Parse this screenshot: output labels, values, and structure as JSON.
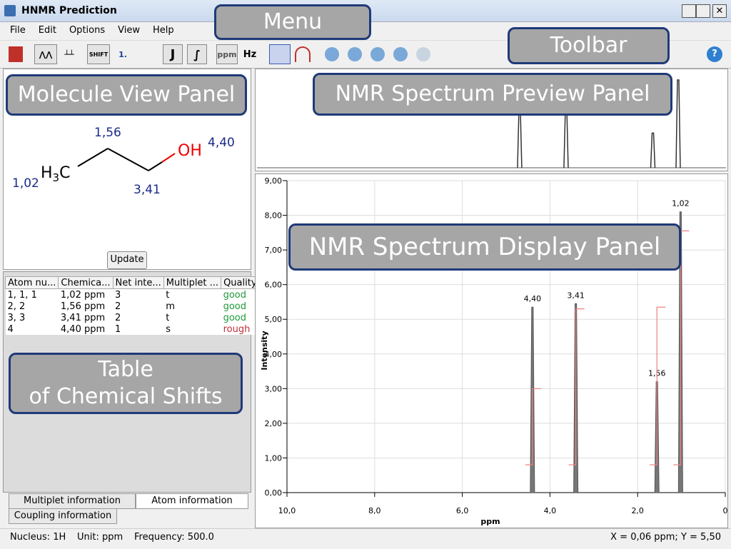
{
  "window": {
    "title": "HNMR Prediction"
  },
  "menu": [
    "File",
    "Edit",
    "Options",
    "View",
    "Help"
  ],
  "toolbar": {
    "shift": "SHIFT",
    "one": "1.",
    "j": "J",
    "ppm": "ppm",
    "hz": "Hz",
    "help": "?"
  },
  "callouts": {
    "menu": "Menu",
    "toolbar": "Toolbar",
    "molecule": "Molecule View Panel",
    "preview": "NMR Spectrum Preview Panel",
    "display": "NMR Spectrum Display Panel",
    "table": [
      "Table",
      "of Chemical Shifts"
    ]
  },
  "molecule": {
    "ch3": [
      "H",
      "3",
      "C"
    ],
    "oh": "OH",
    "shifts": [
      "1,56",
      "1,02",
      "3,41",
      "4,40"
    ]
  },
  "update_button": "Update",
  "table": {
    "columns": [
      "Atom nu...",
      "Chemica...",
      "Net inte...",
      "Multiplet ...",
      "Quality"
    ],
    "rows": [
      [
        "1, 1, 1",
        "1,02 ppm",
        "3",
        "t",
        "good"
      ],
      [
        "2, 2",
        "1,56 ppm",
        "2",
        "m",
        "good"
      ],
      [
        "3, 3",
        "3,41 ppm",
        "2",
        "t",
        "good"
      ],
      [
        "4",
        "4,40 ppm",
        "1",
        "s",
        "rough"
      ]
    ],
    "quality_colors": {
      "good": "#1f9a3a",
      "rough": "#c0303a"
    }
  },
  "tabs": [
    "Multiplet information",
    "Atom information",
    "Coupling information"
  ],
  "spectrum": {
    "xlim": [
      10,
      0
    ],
    "ylim": [
      0,
      9
    ],
    "xticks": [
      {
        "value": 10,
        "label": "10,0"
      },
      {
        "value": 8,
        "label": "8,0"
      },
      {
        "value": 6,
        "label": "6,0"
      },
      {
        "value": 4,
        "label": "4,0"
      },
      {
        "value": 2,
        "label": "2,0"
      },
      0
    ],
    "yticks": [
      {
        "value": 0,
        "label": "0,00"
      },
      {
        "value": 1,
        "label": "1,00"
      },
      {
        "value": 2,
        "label": "2,00"
      },
      {
        "value": 3,
        "label": "3,00"
      },
      {
        "value": 4,
        "label": "4,00"
      },
      {
        "value": 5,
        "label": "5,00"
      },
      {
        "value": 6,
        "label": "6,00"
      },
      {
        "value": 7,
        "label": "7,00"
      },
      {
        "value": 8,
        "label": "8,00"
      },
      {
        "value": 9,
        "label": "9,00"
      }
    ],
    "xlabel": "ppm",
    "ylabel": "Intensity",
    "grid": true,
    "peaks": {
      "x": [
        4.4,
        3.41,
        1.56,
        1.02
      ],
      "values": [
        5.35,
        5.45,
        3.2,
        8.1
      ],
      "labels": [
        "4,40",
        "3,41",
        "1,56",
        "1,02"
      ],
      "color": "#555555"
    },
    "integrals": {
      "from": [
        0.8,
        0.8,
        0.8,
        0.8
      ],
      "to": [
        3.0,
        5.3,
        5.35,
        7.55
      ],
      "color": "#f08080"
    }
  },
  "status": {
    "nucleus": "Nucleus: 1H",
    "unit": "Unit: ppm",
    "frequency": "Frequency: 500.0",
    "cursor": "X = 0,06 ppm; Y = 5,50"
  }
}
